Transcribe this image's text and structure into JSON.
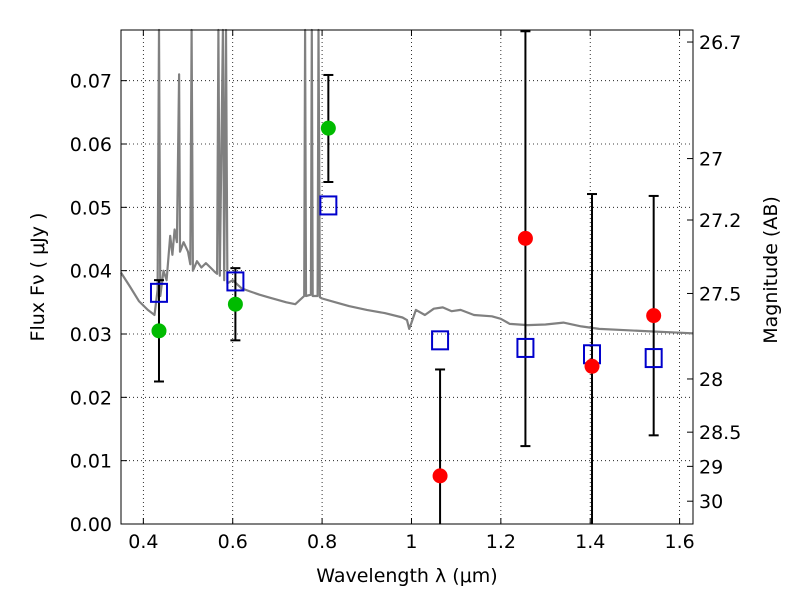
{
  "chart_data": {
    "type": "scatter",
    "xlabel": "Wavelength  λ (μm)",
    "ylabel": "Flux  Fν  ( μJy )",
    "ylabel_right": "Magnitude (AB)",
    "xlim": [
      0.35,
      1.63
    ],
    "ylim": [
      0.0,
      0.078
    ],
    "x_ticks": [
      0.4,
      0.6,
      0.8,
      1.0,
      1.2,
      1.4,
      1.6
    ],
    "x_tick_labels": [
      "0.4",
      "0.6",
      "0.8",
      "1",
      "1.2",
      "1.4",
      "1.6"
    ],
    "y_ticks": [
      0.0,
      0.01,
      0.02,
      0.03,
      0.04,
      0.05,
      0.06,
      0.07
    ],
    "y_tick_labels": [
      "0.00",
      "0.01",
      "0.02",
      "0.03",
      "0.04",
      "0.05",
      "0.06",
      "0.07"
    ],
    "right_ticks": [
      {
        "label": "26.7",
        "flux": 0.0761
      },
      {
        "label": "27",
        "flux": 0.0577
      },
      {
        "label": "27.2",
        "flux": 0.048
      },
      {
        "label": "27.5",
        "flux": 0.0364
      },
      {
        "label": "28",
        "flux": 0.0229
      },
      {
        "label": "28.5",
        "flux": 0.0145
      },
      {
        "label": "29",
        "flux": 0.0091
      },
      {
        "label": "30",
        "flux": 0.0036
      }
    ],
    "grid": true,
    "colors": {
      "model": "#808080",
      "green": "#00bb00",
      "red": "#ff0000",
      "square": "#0000cc",
      "errorbar": "#000000"
    },
    "series": [
      {
        "points": [
          {
            "x": 0.435,
            "y": 0.0305,
            "yerr_low": 0.0225,
            "yerr_high": 0.0385
          },
          {
            "x": 0.606,
            "y": 0.0347,
            "yerr_low": 0.029,
            "yerr_high": 0.0404
          },
          {
            "x": 0.814,
            "y": 0.0625,
            "yerr_low": 0.054,
            "yerr_high": 0.0709
          }
        ]
      },
      {
        "points": [
          {
            "x": 1.064,
            "y": 0.0076,
            "yerr_low": 0.0,
            "yerr_high": 0.0244
          },
          {
            "x": 1.255,
            "y": 0.0451,
            "yerr_low": 0.0123,
            "yerr_high": 0.0778
          },
          {
            "x": 1.404,
            "y": 0.0249,
            "yerr_low": 0.0,
            "yerr_high": 0.0521
          },
          {
            "x": 1.542,
            "y": 0.0329,
            "yerr_low": 0.014,
            "yerr_high": 0.0518
          }
        ]
      },
      {
        "points": [
          {
            "x": 0.435,
            "y": 0.0365
          },
          {
            "x": 0.606,
            "y": 0.0383
          },
          {
            "x": 0.814,
            "y": 0.0503
          },
          {
            "x": 1.064,
            "y": 0.029
          },
          {
            "x": 1.255,
            "y": 0.0278
          },
          {
            "x": 1.404,
            "y": 0.0268
          },
          {
            "x": 1.542,
            "y": 0.0262
          }
        ]
      }
    ],
    "model_curve": [
      [
        0.35,
        0.0397
      ],
      [
        0.37,
        0.0375
      ],
      [
        0.39,
        0.0352
      ],
      [
        0.41,
        0.0338
      ],
      [
        0.425,
        0.033
      ],
      [
        0.432,
        0.037
      ],
      [
        0.435,
        0.078
      ],
      [
        0.438,
        0.036
      ],
      [
        0.445,
        0.04
      ],
      [
        0.452,
        0.0385
      ],
      [
        0.46,
        0.0455
      ],
      [
        0.465,
        0.0425
      ],
      [
        0.47,
        0.0465
      ],
      [
        0.475,
        0.0445
      ],
      [
        0.48,
        0.071
      ],
      [
        0.482,
        0.043
      ],
      [
        0.49,
        0.0445
      ],
      [
        0.5,
        0.043
      ],
      [
        0.505,
        0.041
      ],
      [
        0.508,
        0.078
      ],
      [
        0.511,
        0.04
      ],
      [
        0.52,
        0.0415
      ],
      [
        0.53,
        0.0405
      ],
      [
        0.54,
        0.0412
      ],
      [
        0.55,
        0.0405
      ],
      [
        0.56,
        0.0398
      ],
      [
        0.565,
        0.0395
      ],
      [
        0.568,
        0.078
      ],
      [
        0.571,
        0.0392
      ],
      [
        0.578,
        0.078
      ],
      [
        0.581,
        0.0385
      ],
      [
        0.585,
        0.078
      ],
      [
        0.588,
        0.038
      ],
      [
        0.6,
        0.0385
      ],
      [
        0.62,
        0.0372
      ],
      [
        0.64,
        0.0367
      ],
      [
        0.66,
        0.0362
      ],
      [
        0.68,
        0.0358
      ],
      [
        0.7,
        0.0354
      ],
      [
        0.72,
        0.035
      ],
      [
        0.74,
        0.0347
      ],
      [
        0.76,
        0.036
      ],
      [
        0.762,
        0.078
      ],
      [
        0.764,
        0.036
      ],
      [
        0.775,
        0.0362
      ],
      [
        0.777,
        0.078
      ],
      [
        0.779,
        0.036
      ],
      [
        0.79,
        0.036
      ],
      [
        0.792,
        0.078
      ],
      [
        0.795,
        0.0358
      ],
      [
        0.8,
        0.0356
      ],
      [
        0.83,
        0.035
      ],
      [
        0.86,
        0.0344
      ],
      [
        0.9,
        0.0338
      ],
      [
        0.94,
        0.0333
      ],
      [
        0.98,
        0.0326
      ],
      [
        0.99,
        0.0322
      ],
      [
        0.995,
        0.0308
      ],
      [
        1.0,
        0.0318
      ],
      [
        1.01,
        0.0338
      ],
      [
        1.03,
        0.033
      ],
      [
        1.05,
        0.034
      ],
      [
        1.07,
        0.0342
      ],
      [
        1.09,
        0.0336
      ],
      [
        1.11,
        0.0338
      ],
      [
        1.14,
        0.033
      ],
      [
        1.18,
        0.0328
      ],
      [
        1.2,
        0.0324
      ],
      [
        1.22,
        0.0316
      ],
      [
        1.26,
        0.0314
      ],
      [
        1.3,
        0.0315
      ],
      [
        1.34,
        0.0318
      ],
      [
        1.38,
        0.0312
      ],
      [
        1.42,
        0.0308
      ],
      [
        1.48,
        0.0306
      ],
      [
        1.54,
        0.0304
      ],
      [
        1.6,
        0.0302
      ],
      [
        1.63,
        0.0301
      ]
    ]
  }
}
